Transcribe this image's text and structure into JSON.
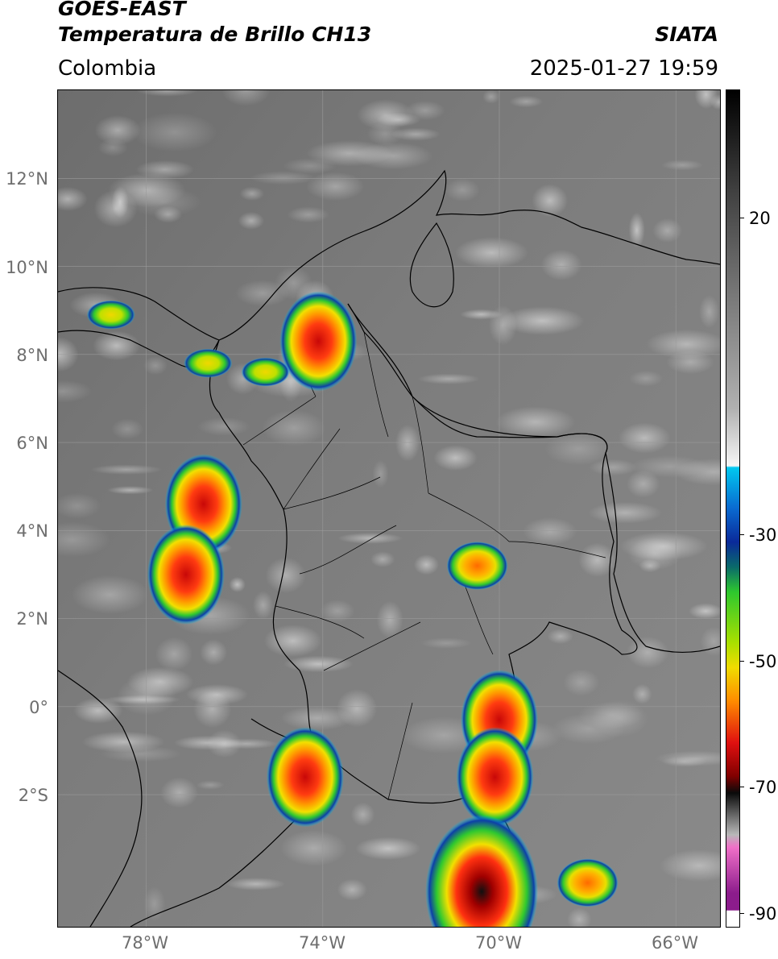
{
  "header": {
    "satellite": "GOES-EAST",
    "product": "Temperatura de Brillo CH13",
    "region": "Colombia",
    "agency": "SIATA",
    "datetime": "2025-01-27 19:59"
  },
  "map": {
    "lat_labels": [
      "12°N",
      "10°N",
      "8°N",
      "6°N",
      "4°N",
      "2°N",
      "0°",
      "2°S"
    ],
    "lon_labels": [
      "78°W",
      "74°W",
      "70°W",
      "66°W"
    ],
    "extent": {
      "lon_min": -80,
      "lon_max": -65,
      "lat_min": -5,
      "lat_max": 14
    },
    "storm_cells": [
      {
        "lon": -74.1,
        "lat": 8.3,
        "peak": "red"
      },
      {
        "lon": -76.7,
        "lat": 4.6,
        "peak": "red"
      },
      {
        "lon": -77.1,
        "lat": 3.0,
        "peak": "red"
      },
      {
        "lon": -70.5,
        "lat": 3.2,
        "peak": "orange"
      },
      {
        "lon": -70.0,
        "lat": -0.3,
        "peak": "red"
      },
      {
        "lon": -70.1,
        "lat": -1.6,
        "peak": "red"
      },
      {
        "lon": -70.4,
        "lat": -4.2,
        "peak": "black"
      },
      {
        "lon": -74.4,
        "lat": -1.6,
        "peak": "red"
      },
      {
        "lon": -68.0,
        "lat": -4.0,
        "peak": "orange"
      },
      {
        "lon": -76.6,
        "lat": 7.8,
        "peak": "yellow"
      },
      {
        "lon": -75.3,
        "lat": 7.6,
        "peak": "yellow"
      },
      {
        "lon": -78.8,
        "lat": 8.9,
        "peak": "yellow"
      }
    ]
  },
  "colorbar": {
    "ticks": [
      "20",
      "-30",
      "-50",
      "-70",
      "-90"
    ],
    "tick_values": [
      20,
      -30,
      -50,
      -70,
      -90
    ],
    "range": [
      -93,
      42
    ],
    "colors": {
      "cyan": "#00c8f0",
      "blue": "#0a2a9a",
      "green": "#2ec82e",
      "yellow": "#f0dc00",
      "orange": "#ff8c00",
      "red": "#e01010",
      "black": "#0a0a0a",
      "pink": "#f070c8",
      "purple": "#8c1c8c"
    }
  }
}
